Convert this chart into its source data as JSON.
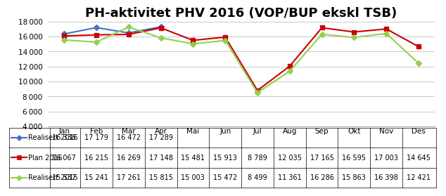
{
  "title": "PH-aktivitet PHV 2016 (VOP/BUP ekskl TSB)",
  "months": [
    "Jan",
    "Feb",
    "Mar",
    "Apr",
    "Mai",
    "Jun",
    "Jul",
    "Aug",
    "Sep",
    "Okt",
    "Nov",
    "Des"
  ],
  "realisert_2016": [
    16338,
    17179,
    16472,
    17289,
    null,
    null,
    null,
    null,
    null,
    null,
    null,
    null
  ],
  "plan_2016": [
    16067,
    16215,
    16269,
    17148,
    15481,
    15913,
    8789,
    12035,
    17165,
    16595,
    17003,
    14645
  ],
  "realisert_2015": [
    15537,
    15241,
    17261,
    15815,
    15003,
    15472,
    8499,
    11361,
    16286,
    15863,
    16398,
    12421
  ],
  "color_realisert_2016": "#4472C4",
  "color_plan_2016": "#CC0000",
  "color_realisert_2015": "#92D050",
  "ylim": [
    4000,
    18000
  ],
  "yticks": [
    4000,
    6000,
    8000,
    10000,
    12000,
    14000,
    16000,
    18000
  ],
  "legend_labels": [
    "Realisert 2016",
    "Plan 2016",
    "Realisert 2015"
  ],
  "table_rows": [
    [
      "Realisert 2016",
      "16 338",
      "17 179",
      "16 472",
      "17 289",
      "",
      "",
      "",
      "",
      "",
      "",
      "",
      ""
    ],
    [
      "Plan 2016",
      "16 067",
      "16 215",
      "16 269",
      "17 148",
      "15 481",
      "15 913",
      "8 789",
      "12 035",
      "17 165",
      "16 595",
      "17 003",
      "14 645"
    ],
    [
      "Realisert 2015",
      "15 537",
      "15 241",
      "17 261",
      "15 815",
      "15 003",
      "15 472",
      "8 499",
      "11 361",
      "16 286",
      "15 863",
      "16 398",
      "12 421"
    ]
  ],
  "title_fontsize": 13,
  "tick_fontsize": 7.5,
  "table_fontsize": 7
}
